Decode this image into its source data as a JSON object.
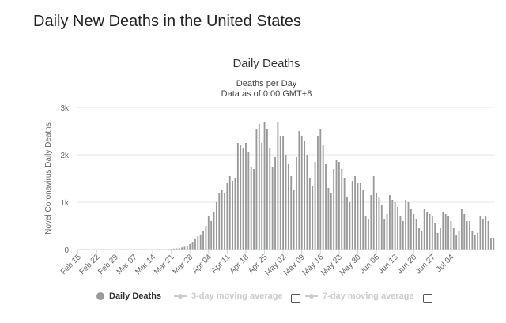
{
  "page": {
    "title": "Daily New Deaths in the United States"
  },
  "chart_data": {
    "type": "bar",
    "title": "Daily Deaths",
    "subtitle_line1": "Deaths per Day",
    "subtitle_line2": "Data as of 0:00 GMT+8",
    "ylabel": "Novel Coronavirus Daily Deaths",
    "xlabel": "",
    "ylim": [
      0,
      3000
    ],
    "yticks": [
      0,
      1000,
      2000,
      3000
    ],
    "ytick_labels": [
      "0",
      "1k",
      "2k",
      "3k"
    ],
    "grid": true,
    "bar_color": "#999999",
    "start_date": "2020-02-15",
    "xtick_labels": [
      "Feb 15",
      "Feb 22",
      "Feb 29",
      "Mar 07",
      "Mar 14",
      "Mar 21",
      "Mar 28",
      "Apr 04",
      "Apr 11",
      "Apr 18",
      "Apr 25",
      "May 02",
      "May 09",
      "May 16",
      "May 23",
      "May 30",
      "Jun 06",
      "Jun 13",
      "Jun 20",
      "Jun 27",
      "Jul 04"
    ],
    "values": [
      0,
      0,
      0,
      0,
      0,
      0,
      0,
      0,
      0,
      0,
      0,
      0,
      0,
      0,
      0,
      0,
      0,
      0,
      0,
      0,
      0,
      0,
      0,
      0,
      0,
      0,
      0,
      0,
      1,
      2,
      3,
      5,
      7,
      10,
      12,
      15,
      20,
      25,
      35,
      45,
      60,
      80,
      120,
      160,
      220,
      280,
      320,
      400,
      500,
      700,
      600,
      800,
      1000,
      1200,
      1250,
      1200,
      1400,
      1550,
      1450,
      1500,
      2250,
      2200,
      2150,
      2250,
      2050,
      1750,
      1700,
      2550,
      2650,
      2250,
      2700,
      2550,
      2150,
      1750,
      1950,
      2700,
      2400,
      2400,
      2000,
      1800,
      1550,
      1250,
      1950,
      2500,
      2400,
      2300,
      2000,
      1500,
      1350,
      1850,
      2400,
      2550,
      2200,
      1800,
      1300,
      1200,
      1700,
      1900,
      1850,
      1700,
      1500,
      1100,
      1000,
      1450,
      1550,
      1400,
      1400,
      1250,
      700,
      650,
      1150,
      1550,
      1200,
      1100,
      950,
      650,
      750,
      1150,
      1050,
      1000,
      900,
      700,
      600,
      1050,
      1000,
      850,
      750,
      650,
      450,
      400,
      850,
      800,
      750,
      700,
      550,
      350,
      450,
      800,
      750,
      700,
      600,
      450,
      300,
      400,
      850,
      750,
      600,
      600,
      400,
      300,
      350,
      700,
      650,
      700,
      600,
      250,
      250
    ]
  },
  "legend": {
    "items": [
      {
        "label": "Daily Deaths",
        "active": true
      },
      {
        "label": "3-day moving average",
        "active": false
      },
      {
        "label": "7-day moving average",
        "active": false
      }
    ]
  }
}
